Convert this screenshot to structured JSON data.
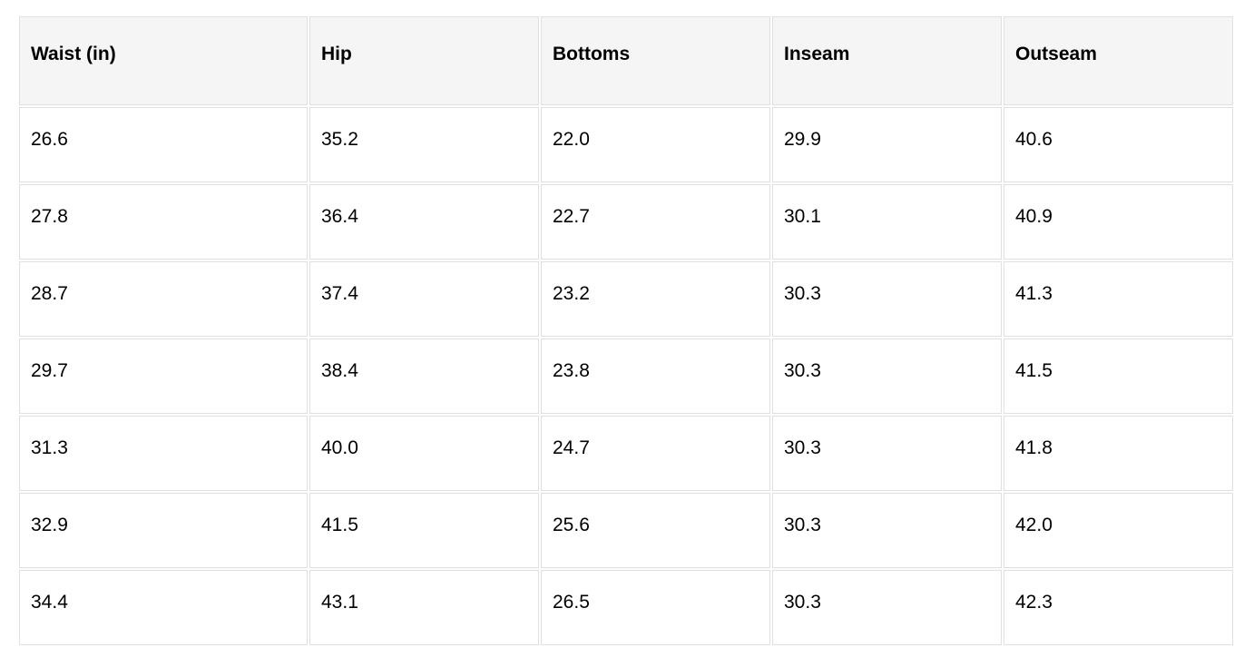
{
  "table": {
    "columns": [
      "Waist (in)",
      "Hip",
      "Bottoms",
      "Inseam",
      "Outseam"
    ],
    "rows": [
      [
        "26.6",
        "35.2",
        "22.0",
        "29.9",
        "40.6"
      ],
      [
        "27.8",
        "36.4",
        "22.7",
        "30.1",
        "40.9"
      ],
      [
        "28.7",
        "37.4",
        "23.2",
        "30.3",
        "41.3"
      ],
      [
        "29.7",
        "38.4",
        "23.8",
        "30.3",
        "41.5"
      ],
      [
        "31.3",
        "40.0",
        "24.7",
        "30.3",
        "41.8"
      ],
      [
        "32.9",
        "41.5",
        "25.6",
        "30.3",
        "42.0"
      ],
      [
        "34.4",
        "43.1",
        "26.5",
        "30.3",
        "42.3"
      ]
    ]
  },
  "colors": {
    "header_background": "#f5f5f5",
    "cell_border": "#e0e0e0",
    "text": "#000000",
    "page_background": "#ffffff"
  },
  "chart_data": {
    "type": "table",
    "title": "",
    "columns": [
      "Waist (in)",
      "Hip",
      "Bottoms",
      "Inseam",
      "Outseam"
    ],
    "series": [
      {
        "name": "Waist (in)",
        "values": [
          26.6,
          27.8,
          28.7,
          29.7,
          31.3,
          32.9,
          34.4
        ]
      },
      {
        "name": "Hip",
        "values": [
          35.2,
          36.4,
          37.4,
          38.4,
          40.0,
          41.5,
          43.1
        ]
      },
      {
        "name": "Bottoms",
        "values": [
          22.0,
          22.7,
          23.2,
          23.8,
          24.7,
          25.6,
          26.5
        ]
      },
      {
        "name": "Inseam",
        "values": [
          29.9,
          30.1,
          30.3,
          30.3,
          30.3,
          30.3,
          30.3
        ]
      },
      {
        "name": "Outseam",
        "values": [
          40.6,
          40.9,
          41.3,
          41.5,
          41.8,
          42.0,
          42.3
        ]
      }
    ]
  }
}
